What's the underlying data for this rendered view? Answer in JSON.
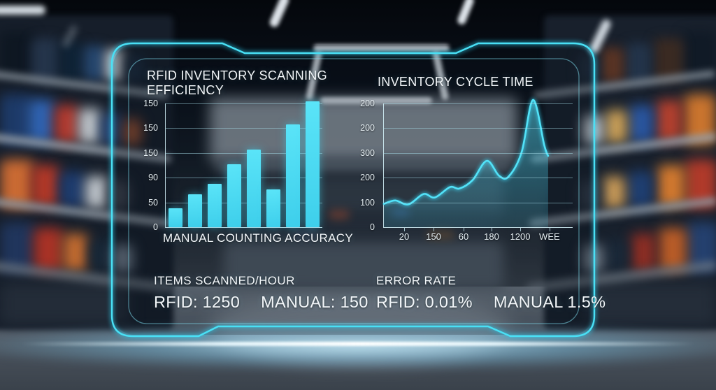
{
  "panel": {
    "accent_color": "#3bd7f1",
    "stats": {
      "scanned_heading": "ITEMS SCANNED/HOUR",
      "scanned_rfid": "RFID: 1250",
      "scanned_manual": "MANUAL: 150",
      "error_heading": "ERROR RATE",
      "error_rfid": "RFID: 0.01%",
      "error_manual": "MANUAL 1.5%"
    }
  },
  "chart_data": [
    {
      "type": "bar",
      "title": "RFID INVENTORY SCANNING EFFICIENCY",
      "title_lines": [
        "RFID INVENTORY SCANNING",
        "EFFICIENCY"
      ],
      "footer": "MANUAL COUNTING ACCURACY",
      "y_tick_labels_top_to_bottom": [
        "150",
        "150",
        "150",
        "90",
        "50",
        "0"
      ],
      "x_tick_labels": [],
      "ylim": [
        0,
        250
      ],
      "values": [
        38,
        66,
        88,
        127,
        157,
        76,
        208,
        254
      ],
      "bar_color": "#41d6f0",
      "grid": true,
      "legend": "none"
    },
    {
      "type": "area",
      "title": "INVENTORY CYCLE TIME",
      "y_tick_labels_top_to_bottom": [
        "200",
        "200",
        "300",
        "200",
        "100",
        "0"
      ],
      "x_tick_labels": [
        "20",
        "150",
        "60",
        "180",
        "1200",
        "WEE"
      ],
      "ylim": [
        0,
        250
      ],
      "points": [
        [
          0.0,
          47
        ],
        [
          0.06,
          54
        ],
        [
          0.13,
          46
        ],
        [
          0.21,
          67
        ],
        [
          0.27,
          60
        ],
        [
          0.35,
          81
        ],
        [
          0.4,
          78
        ],
        [
          0.47,
          95
        ],
        [
          0.545,
          134
        ],
        [
          0.61,
          104
        ],
        [
          0.66,
          102
        ],
        [
          0.73,
          152
        ],
        [
          0.79,
          257
        ],
        [
          0.85,
          165
        ],
        [
          0.87,
          144
        ]
      ],
      "line_color": "#52e2f8",
      "grid": true,
      "legend": "none"
    }
  ]
}
